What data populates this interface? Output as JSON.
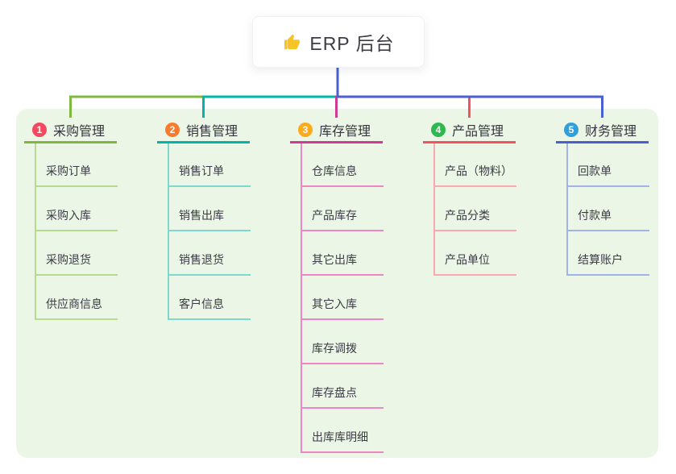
{
  "root": {
    "label": "ERP 后台",
    "icon": "thumbs-up-icon",
    "icon_color": "#f7c325"
  },
  "panel": {
    "background": "#ecf6e6"
  },
  "branches": [
    {
      "num": "1",
      "label": "采购管理",
      "badge_color": "#f5495f",
      "main_color": "#7cb93e",
      "light_color": "#b5da90",
      "children": [
        "采购订单",
        "采购入库",
        "采购退货",
        "供应商信息"
      ]
    },
    {
      "num": "2",
      "label": "销售管理",
      "badge_color": "#fb7b2e",
      "main_color": "#00b5a9",
      "light_color": "#7fd8d0",
      "children": [
        "销售订单",
        "销售出库",
        "销售退货",
        "客户信息"
      ]
    },
    {
      "num": "3",
      "label": "库存管理",
      "badge_color": "#fbab1b",
      "main_color": "#cf3a93",
      "light_color": "#ee85c4",
      "children": [
        "仓库信息",
        "产品库存",
        "其它出库",
        "其它入库",
        "库存调拨",
        "库存盘点",
        "出库库明细"
      ]
    },
    {
      "num": "4",
      "label": "产品管理",
      "badge_color": "#2eb850",
      "main_color": "#f5515f",
      "light_color": "#fba8af",
      "children": [
        "产品（物料）",
        "产品分类",
        "产品单位"
      ]
    },
    {
      "num": "5",
      "label": "财务管理",
      "badge_color": "#31a0da",
      "main_color": "#4a5fd0",
      "light_color": "#a2b2ea",
      "children": [
        "回款单",
        "付款单",
        "结算账户"
      ]
    }
  ]
}
